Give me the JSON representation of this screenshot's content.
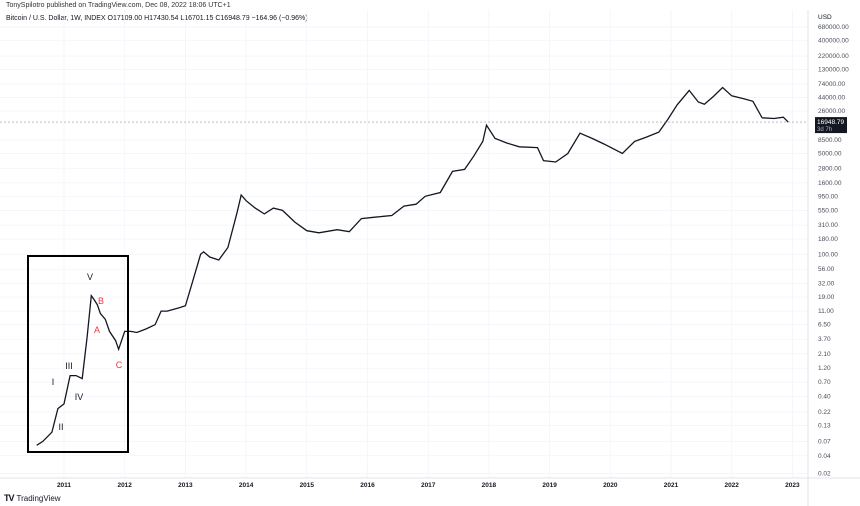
{
  "header": {
    "published": "TonySpilotro published on TradingView.com, Dec 08, 2022 18:06 UTC+1",
    "legend": "Bitcoin / U.S. Dollar, 1W, INDEX  O17109.00  H17430.54  L16701.15  C16948.79  −164.96 (−0.96%)"
  },
  "footer": {
    "brand": "TradingView"
  },
  "chart_data": {
    "type": "line",
    "scale": "log",
    "currency_label": "USD",
    "y_ticks": [
      "680000.00",
      "400000.00",
      "220000.00",
      "130000.00",
      "74000.00",
      "44000.00",
      "26000.00",
      "8500.00",
      "5000.00",
      "2800.00",
      "1600.00",
      "950.00",
      "550.00",
      "310.00",
      "180.00",
      "100.00",
      "56.00",
      "32.00",
      "19.00",
      "11.00",
      "6.50",
      "3.70",
      "2.10",
      "1.20",
      "0.70",
      "0.40",
      "0.22",
      "0.13",
      "0.07",
      "0.04",
      "0.02"
    ],
    "x_ticks": [
      "2011",
      "2012",
      "2013",
      "2014",
      "2015",
      "2016",
      "2017",
      "2018",
      "2019",
      "2020",
      "2021",
      "2022",
      "2023"
    ],
    "last_price": {
      "value": "16948.79",
      "countdown": "3d 7h"
    },
    "grid": true,
    "series": [
      {
        "x": [
          2010.55,
          2010.65,
          2010.8,
          2010.9,
          2011.0,
          2011.1,
          2011.2,
          2011.3,
          2011.38,
          2011.45,
          2011.5,
          2011.55,
          2011.6,
          2011.68,
          2011.75,
          2011.85,
          2011.9,
          2012.0,
          2012.1,
          2012.2,
          2012.35,
          2012.5,
          2012.6,
          2012.7,
          2012.9,
          2013.0,
          2013.1,
          2013.25,
          2013.3,
          2013.4,
          2013.55,
          2013.7,
          2013.85,
          2013.92,
          2014.0,
          2014.15,
          2014.3,
          2014.45,
          2014.6,
          2014.8,
          2015.0,
          2015.2,
          2015.5,
          2015.7,
          2015.9,
          2016.1,
          2016.4,
          2016.6,
          2016.8,
          2016.95,
          2017.2,
          2017.4,
          2017.6,
          2017.75,
          2017.9,
          2017.96,
          2018.1,
          2018.3,
          2018.5,
          2018.8,
          2018.9,
          2019.1,
          2019.3,
          2019.5,
          2019.7,
          2019.9,
          2020.2,
          2020.4,
          2020.6,
          2020.8,
          2020.95,
          2021.1,
          2021.3,
          2021.45,
          2021.55,
          2021.7,
          2021.85,
          2022.0,
          2022.2,
          2022.35,
          2022.5,
          2022.7,
          2022.85,
          2022.93
        ],
        "y": [
          0.06,
          0.07,
          0.1,
          0.25,
          0.3,
          0.9,
          0.9,
          0.8,
          4,
          20,
          17,
          14,
          10,
          8,
          5,
          3.5,
          2.5,
          5,
          5,
          4.8,
          5.5,
          6.5,
          11,
          11,
          12.5,
          13.5,
          30,
          100,
          110,
          90,
          80,
          130,
          500,
          1000,
          800,
          600,
          480,
          600,
          550,
          350,
          250,
          230,
          260,
          240,
          400,
          420,
          450,
          650,
          700,
          950,
          1100,
          2500,
          2700,
          4500,
          8000,
          15000,
          9000,
          7500,
          6500,
          6300,
          3800,
          3600,
          5000,
          11000,
          9000,
          7200,
          5000,
          8000,
          9500,
          11500,
          19000,
          33000,
          58000,
          37000,
          34000,
          46000,
          65000,
          47000,
          42000,
          38000,
          20000,
          19500,
          20500,
          16948.79
        ]
      }
    ],
    "annotations": [
      {
        "text": "V",
        "color": "#131722"
      },
      {
        "text": "B",
        "color": "#f23645"
      },
      {
        "text": "A",
        "color": "#f23645"
      },
      {
        "text": "C",
        "color": "#f23645"
      },
      {
        "text": "I",
        "color": "#131722"
      },
      {
        "text": "III",
        "color": "#131722"
      },
      {
        "text": "IV",
        "color": "#131722"
      },
      {
        "text": "II",
        "color": "#131722"
      }
    ]
  }
}
